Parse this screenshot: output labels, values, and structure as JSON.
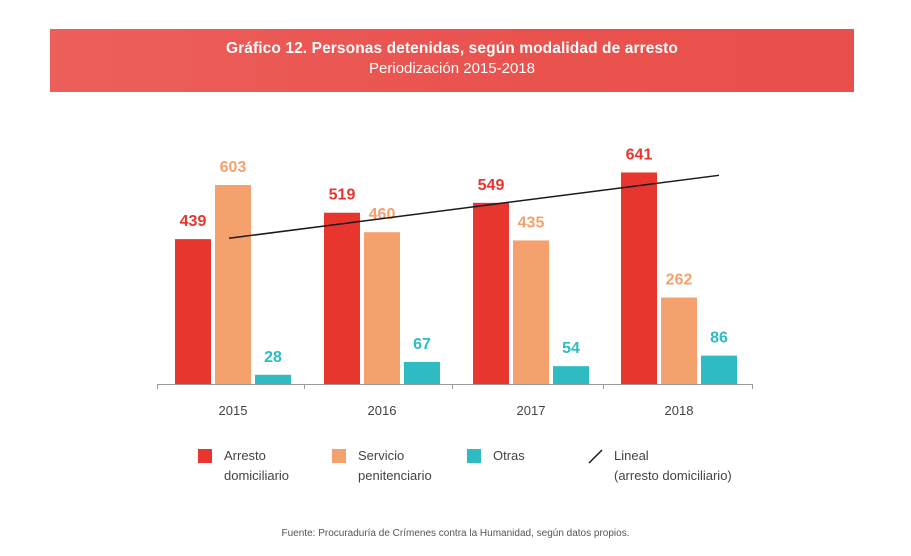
{
  "header": {
    "title": "Gráfico 12. Personas detenidas, según modalidad de arresto",
    "subtitle": "Periodización 2015-2018"
  },
  "chart_data": {
    "type": "bar",
    "categories": [
      "2015",
      "2016",
      "2017",
      "2018"
    ],
    "series": [
      {
        "name": "Arresto domiciliario",
        "values": [
          439,
          519,
          549,
          641
        ],
        "color": "#e8352e"
      },
      {
        "name": "Servicio penitenciario",
        "values": [
          603,
          460,
          435,
          262
        ],
        "color": "#f4a16d"
      },
      {
        "name": "Otras",
        "values": [
          28,
          67,
          54,
          86
        ],
        "color": "#2ebcc2"
      }
    ],
    "trendline": {
      "name": "Lineal (arresto domiciliario)",
      "of_series": "Arresto domiciliario",
      "color": "#1a1a1a"
    },
    "ylim": [
      0,
      700
    ],
    "grid": false,
    "legend_position": "bottom"
  },
  "legend": {
    "items": [
      {
        "label": "Arresto\ndomiciliario",
        "color": "#e8352e",
        "kind": "box"
      },
      {
        "label": "Servicio\npenitenciario",
        "color": "#f4a16d",
        "kind": "box"
      },
      {
        "label": "Otras",
        "color": "#2ebcc2",
        "kind": "box"
      },
      {
        "label": "Lineal\n(arresto domiciliario)",
        "color": "#1a1a1a",
        "kind": "line"
      }
    ]
  },
  "source": "Fuente: Procuraduría de Crímenes contra la Humanidad, según datos propios."
}
